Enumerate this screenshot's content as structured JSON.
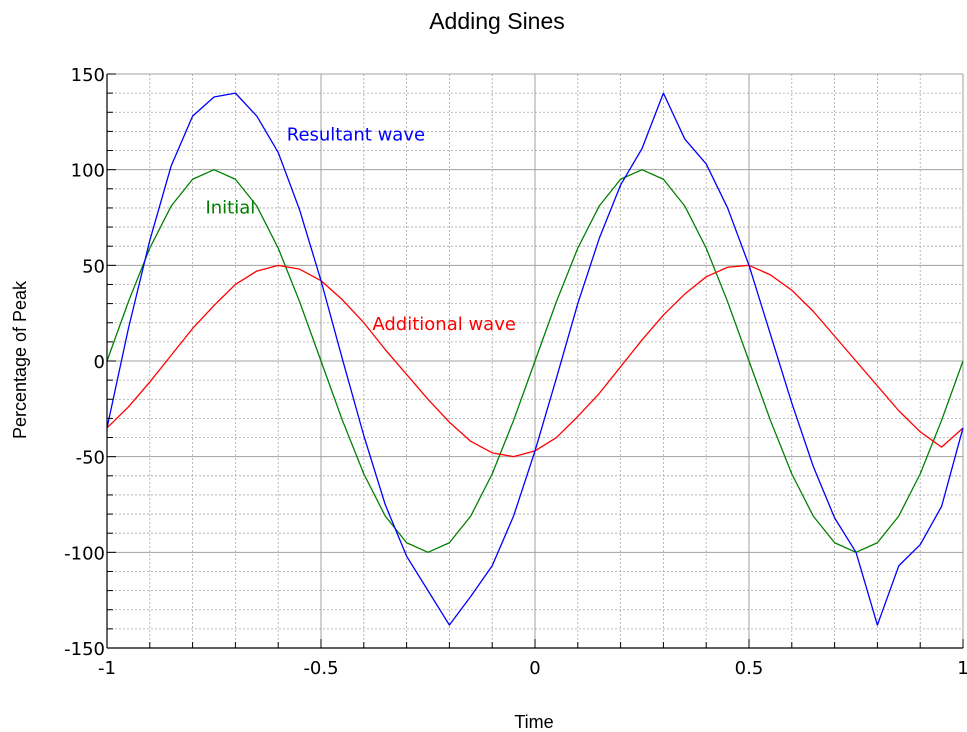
{
  "chart_data": {
    "type": "line",
    "title": "Adding Sines",
    "xlabel": "Time",
    "ylabel": "Percentage of Peak",
    "xlim": [
      -1,
      1
    ],
    "ylim": [
      -150,
      150
    ],
    "x_ticks": [
      -1,
      -0.5,
      0,
      0.5,
      1
    ],
    "x_tick_labels": [
      "-1",
      "-0.5",
      "0",
      "0.5",
      "1"
    ],
    "y_ticks": [
      150,
      100,
      50,
      0,
      -50,
      -100,
      -150
    ],
    "y_tick_labels": [
      "150",
      "100",
      "50",
      "0",
      "-50",
      "-100",
      "-150"
    ],
    "grid": true,
    "legend": "none",
    "series": [
      {
        "name": "Initial",
        "color": "#008000",
        "x": [
          -1,
          -0.95,
          -0.9,
          -0.85,
          -0.8,
          -0.75,
          -0.7,
          -0.65,
          -0.6,
          -0.55,
          -0.5,
          -0.45,
          -0.4,
          -0.35,
          -0.3,
          -0.25,
          -0.2,
          -0.15,
          -0.1,
          -0.05,
          0,
          0.05,
          0.1,
          0.15,
          0.2,
          0.25,
          0.3,
          0.35,
          0.4,
          0.45,
          0.5,
          0.55,
          0.6,
          0.65,
          0.7,
          0.75,
          0.8,
          0.85,
          0.9,
          0.95,
          1
        ],
        "values": [
          0,
          31,
          59,
          81,
          95,
          100,
          95,
          81,
          59,
          31,
          0,
          -31,
          -59,
          -81,
          -95,
          -100,
          -95,
          -81,
          -59,
          -31,
          0,
          31,
          59,
          81,
          95,
          100,
          95,
          81,
          59,
          31,
          0,
          -31,
          -59,
          -81,
          -95,
          -100,
          -95,
          -81,
          -59,
          -31,
          0
        ]
      },
      {
        "name": "Additional wave",
        "color": "#ff0000",
        "x": [
          -1,
          -0.95,
          -0.9,
          -0.85,
          -0.8,
          -0.75,
          -0.7,
          -0.65,
          -0.6,
          -0.55,
          -0.5,
          -0.45,
          -0.4,
          -0.35,
          -0.3,
          -0.25,
          -0.2,
          -0.15,
          -0.1,
          -0.05,
          0,
          0.05,
          0.1,
          0.15,
          0.2,
          0.25,
          0.3,
          0.35,
          0.4,
          0.45,
          0.5,
          0.55,
          0.6,
          0.65,
          0.7,
          0.75,
          0.8,
          0.85,
          0.9,
          0.95,
          1
        ],
        "values": [
          -35,
          -24,
          -11,
          3,
          17,
          29,
          40,
          47,
          50,
          48,
          42,
          32,
          20,
          6,
          -7,
          -20,
          -32,
          -42,
          -48,
          -50,
          -47,
          -40,
          -29,
          -17,
          -3,
          11,
          24,
          35,
          44,
          49,
          50,
          45,
          37,
          26,
          13,
          0,
          -13,
          -26,
          -37,
          -45,
          -35
        ]
      },
      {
        "name": "Resultant wave",
        "color": "#0000ff",
        "x": [
          -1,
          -0.95,
          -0.9,
          -0.85,
          -0.8,
          -0.75,
          -0.7,
          -0.65,
          -0.6,
          -0.55,
          -0.5,
          -0.45,
          -0.4,
          -0.35,
          -0.3,
          -0.25,
          -0.2,
          -0.15,
          -0.1,
          -0.05,
          0,
          0.05,
          0.1,
          0.15,
          0.2,
          0.25,
          0.3,
          0.35,
          0.4,
          0.45,
          0.5,
          0.55,
          0.6,
          0.65,
          0.7,
          0.75,
          0.8,
          0.85,
          0.9,
          0.95,
          1
        ],
        "values": [
          -35,
          17,
          63,
          102,
          128,
          138,
          140,
          128,
          109,
          79,
          42,
          1,
          -39,
          -75,
          -102,
          -120,
          -138,
          -123,
          -107,
          -81,
          -47,
          -9,
          30,
          64,
          92,
          111,
          140,
          116,
          103,
          80,
          50,
          14,
          -22,
          -55,
          -82,
          -100,
          -138,
          -107,
          -96,
          -76,
          -35
        ]
      }
    ],
    "annotations": [
      {
        "text": "Resultant wave",
        "x": -0.58,
        "y": 112,
        "color": "#0000ff"
      },
      {
        "text": "Initial",
        "x": -0.77,
        "y": 74,
        "color": "#008000"
      },
      {
        "text": "Additional wave",
        "x": -0.38,
        "y": 13,
        "color": "#ff0000"
      }
    ],
    "colors": {
      "major_grid": "#a0a0a0",
      "minor_grid": "#a8a8a8",
      "axis": "#000000"
    }
  }
}
